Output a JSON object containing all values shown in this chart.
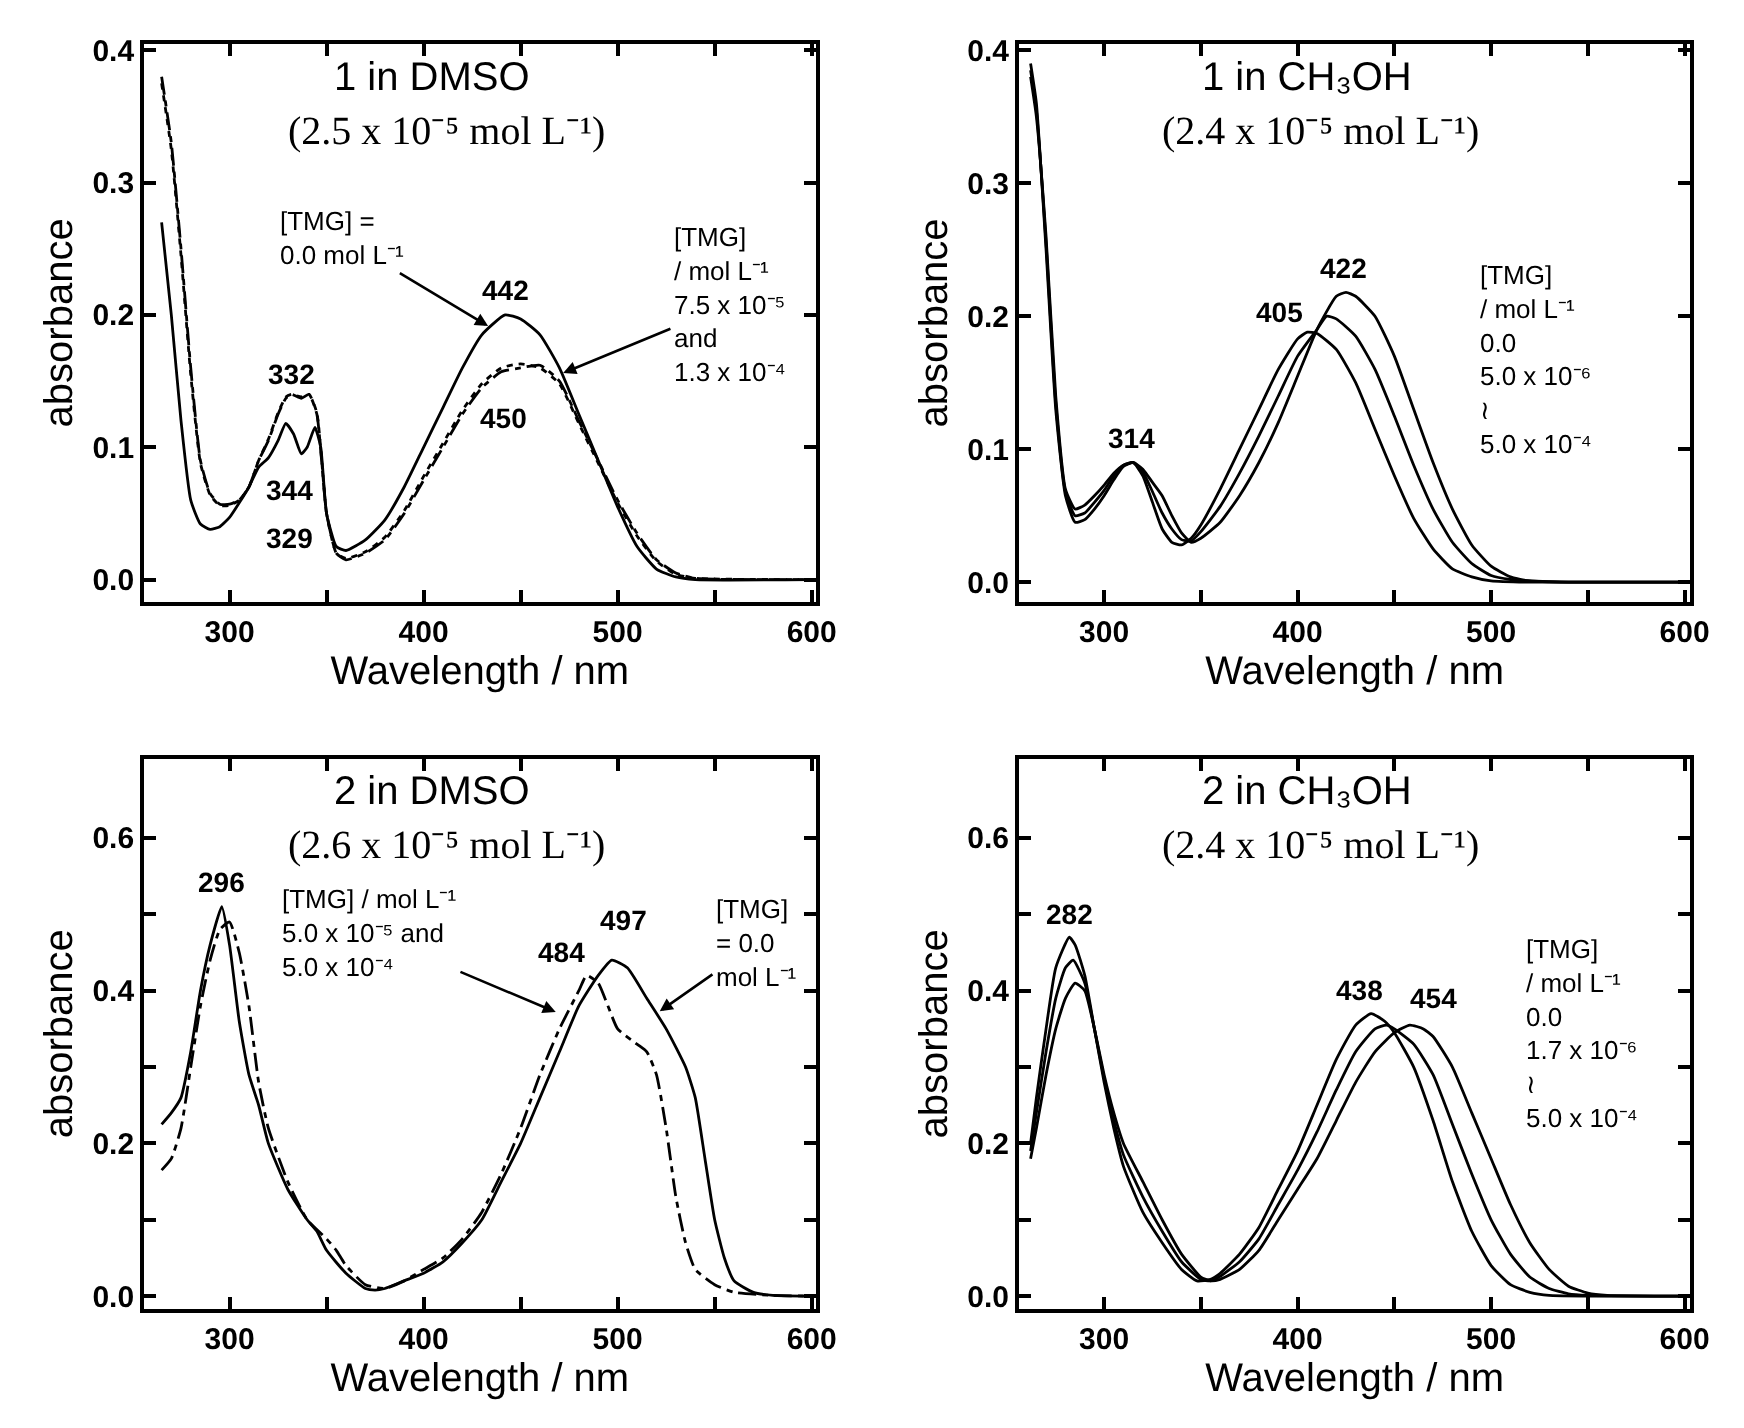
{
  "chart_data": [
    {
      "type": "line",
      "title": "1 in DMSO",
      "subtitle": "(2.5 x 10⁻⁵ mol L⁻¹)",
      "xlabel": "Wavelength / nm",
      "ylabel": "absorbance",
      "marker": "none",
      "xlim": [
        256,
        602
      ],
      "xticks": [
        300,
        {
          "value": 350,
          "label": null
        },
        400,
        {
          "value": 450,
          "label": null
        },
        500,
        {
          "value": 550,
          "label": null
        },
        600
      ],
      "ylim": [
        -0.017,
        0.405
      ],
      "yticks": [
        {
          "value": 0,
          "label": "0.0"
        },
        0.1,
        0.2,
        0.3,
        0.4
      ],
      "series": [
        {
          "color": "#000000",
          "line_style": "solid",
          "x": [
            265,
            270,
            275,
            280,
            285,
            290,
            295,
            300,
            305,
            310,
            315,
            320,
            325,
            329,
            333,
            337,
            340,
            344,
            347,
            350,
            355,
            360,
            370,
            380,
            390,
            400,
            410,
            420,
            430,
            442,
            450,
            460,
            470,
            480,
            490,
            500,
            510,
            520,
            530,
            540,
            600
          ],
          "values": [
            0.27,
            0.2,
            0.12,
            0.06,
            0.042,
            0.038,
            0.04,
            0.047,
            0.058,
            0.07,
            0.085,
            0.092,
            0.105,
            0.118,
            0.11,
            0.095,
            0.1,
            0.115,
            0.1,
            0.05,
            0.025,
            0.022,
            0.03,
            0.045,
            0.07,
            0.1,
            0.13,
            0.16,
            0.185,
            0.2,
            0.197,
            0.185,
            0.16,
            0.125,
            0.09,
            0.055,
            0.025,
            0.008,
            0.002,
            0,
            0
          ]
        },
        {
          "color": "#000000",
          "line_style": "dashed",
          "x": [
            265,
            270,
            275,
            280,
            285,
            290,
            295,
            300,
            305,
            310,
            315,
            320,
            325,
            329,
            332,
            337,
            341,
            345,
            350,
            355,
            360,
            370,
            380,
            390,
            400,
            410,
            420,
            430,
            440,
            450,
            460,
            470,
            480,
            490,
            500,
            510,
            520,
            530,
            540,
            600
          ],
          "values": [
            0.38,
            0.33,
            0.25,
            0.16,
            0.09,
            0.065,
            0.057,
            0.057,
            0.06,
            0.07,
            0.09,
            0.105,
            0.125,
            0.137,
            0.14,
            0.137,
            0.14,
            0.125,
            0.05,
            0.02,
            0.015,
            0.02,
            0.03,
            0.05,
            0.075,
            0.1,
            0.125,
            0.145,
            0.157,
            0.16,
            0.162,
            0.15,
            0.12,
            0.09,
            0.06,
            0.035,
            0.015,
            0.005,
            0.001,
            0
          ]
        },
        {
          "color": "#000000",
          "line_style": "dotted",
          "x": [
            265,
            270,
            275,
            280,
            285,
            290,
            295,
            300,
            305,
            310,
            315,
            320,
            325,
            329,
            332,
            337,
            341,
            345,
            350,
            355,
            360,
            370,
            380,
            390,
            400,
            410,
            420,
            430,
            440,
            450,
            460,
            470,
            480,
            490,
            500,
            510,
            520,
            530,
            540,
            600
          ],
          "values": [
            0.375,
            0.325,
            0.245,
            0.155,
            0.088,
            0.064,
            0.056,
            0.056,
            0.06,
            0.07,
            0.09,
            0.106,
            0.126,
            0.138,
            0.14,
            0.138,
            0.14,
            0.126,
            0.05,
            0.02,
            0.016,
            0.021,
            0.032,
            0.052,
            0.078,
            0.103,
            0.128,
            0.148,
            0.16,
            0.163,
            0.16,
            0.148,
            0.118,
            0.088,
            0.058,
            0.033,
            0.014,
            0.004,
            0.001,
            0
          ]
        }
      ],
      "annotations": [
        {
          "text": "332",
          "x": 332,
          "y": 0.14
        },
        "344",
        "329",
        {
          "text": "442",
          "x": 442,
          "y": 0.2
        },
        {
          "text": "450",
          "x": 450,
          "y": 0.16
        },
        {
          "text": "[TMG] =\n0.0 mol L⁻¹",
          "x": 435,
          "y": 0.19
        },
        {
          "text": "[TMG]\n/ mol L⁻¹\n7.5 x 10⁻⁵\nand\n1.3 x 10⁻⁴",
          "x": 470,
          "y": 0.155
        }
      ]
    },
    {
      "type": "line",
      "title": "1 in CH₃OH",
      "subtitle": "(2.4 x 10⁻⁵ mol L⁻¹)",
      "xlabel": "Wavelength / nm",
      "ylabel": "absorbance",
      "marker": "none",
      "xlim": [
        256,
        603
      ],
      "xticks": [
        300,
        {
          "value": 350,
          "label": null
        },
        400,
        {
          "value": 450,
          "label": null
        },
        500,
        {
          "value": 550,
          "label": null
        },
        600
      ],
      "ylim": [
        -0.015,
        0.405
      ],
      "yticks": [
        {
          "value": 0,
          "label": "0.0"
        },
        0.1,
        0.2,
        0.3,
        0.4
      ],
      "series": [
        {
          "color": "#000000",
          "line_style": "solid",
          "x": [
            262,
            265,
            270,
            275,
            280,
            285,
            290,
            295,
            300,
            305,
            310,
            315,
            320,
            325,
            330,
            335,
            340,
            345,
            350,
            360,
            370,
            380,
            390,
            400,
            410,
            420,
            425,
            430,
            440,
            450,
            460,
            470,
            480,
            490,
            500,
            510,
            520,
            540,
            600
          ],
          "values": [
            0.39,
            0.36,
            0.25,
            0.13,
            0.065,
            0.045,
            0.047,
            0.055,
            0.065,
            0.077,
            0.087,
            0.09,
            0.085,
            0.075,
            0.065,
            0.05,
            0.037,
            0.03,
            0.033,
            0.045,
            0.065,
            0.09,
            0.12,
            0.155,
            0.19,
            0.215,
            0.218,
            0.215,
            0.2,
            0.17,
            0.13,
            0.09,
            0.055,
            0.028,
            0.012,
            0.004,
            0.001,
            0,
            0
          ]
        },
        {
          "color": "#000000",
          "line_style": "solid",
          "x": [
            262,
            265,
            270,
            275,
            280,
            285,
            290,
            295,
            300,
            305,
            310,
            315,
            320,
            325,
            330,
            335,
            340,
            345,
            350,
            360,
            370,
            380,
            390,
            400,
            410,
            415,
            420,
            430,
            440,
            450,
            460,
            470,
            480,
            490,
            500,
            510,
            520,
            540,
            600
          ],
          "values": [
            0.385,
            0.355,
            0.255,
            0.135,
            0.068,
            0.05,
            0.052,
            0.06,
            0.069,
            0.08,
            0.088,
            0.09,
            0.083,
            0.068,
            0.052,
            0.04,
            0.032,
            0.031,
            0.038,
            0.057,
            0.082,
            0.11,
            0.14,
            0.17,
            0.19,
            0.2,
            0.198,
            0.185,
            0.16,
            0.125,
            0.088,
            0.055,
            0.03,
            0.014,
            0.005,
            0.002,
            0.001,
            0,
            0
          ]
        },
        {
          "color": "#000000",
          "line_style": "solid",
          "x": [
            262,
            265,
            270,
            275,
            280,
            285,
            290,
            295,
            300,
            305,
            310,
            315,
            320,
            325,
            330,
            335,
            340,
            345,
            350,
            360,
            370,
            380,
            390,
            400,
            405,
            410,
            420,
            430,
            440,
            450,
            460,
            470,
            480,
            490,
            500,
            520,
            600
          ],
          "values": [
            0.38,
            0.35,
            0.26,
            0.14,
            0.07,
            0.055,
            0.058,
            0.065,
            0.073,
            0.082,
            0.088,
            0.09,
            0.08,
            0.06,
            0.04,
            0.03,
            0.028,
            0.033,
            0.043,
            0.07,
            0.1,
            0.13,
            0.16,
            0.183,
            0.188,
            0.187,
            0.175,
            0.15,
            0.115,
            0.08,
            0.048,
            0.025,
            0.01,
            0.004,
            0.001,
            0,
            0
          ]
        }
      ],
      "annotations": [
        {
          "text": "314",
          "x": 314,
          "y": 0.09
        },
        {
          "text": "405",
          "x": 405,
          "y": 0.188
        },
        {
          "text": "422",
          "x": 422,
          "y": 0.218
        },
        "[TMG]\n/ mol L⁻¹\n0.0\n5.0 x 10⁻⁶\n≀\n5.0 x 10⁻⁴"
      ]
    },
    {
      "type": "line",
      "title": "2 in DMSO",
      "subtitle": "(2.6 x 10⁻⁵ mol L⁻¹)",
      "xlabel": "Wavelength / nm",
      "ylabel": "absorbance",
      "marker": "none",
      "xlim": [
        256,
        602
      ],
      "xticks": [
        300,
        {
          "value": 350,
          "label": null
        },
        400,
        {
          "value": 450,
          "label": null
        },
        500,
        {
          "value": 550,
          "label": null
        },
        600
      ],
      "ylim": [
        -0.017,
        0.704
      ],
      "yticks": [
        {
          "value": 0,
          "label": "0.0"
        },
        {
          "value": 0.1,
          "label": null
        },
        0.2,
        {
          "value": 0.3,
          "label": null
        },
        0.4,
        {
          "value": 0.5,
          "label": null
        },
        0.6
      ],
      "series": [
        {
          "color": "#000000",
          "line_style": "solid",
          "x": [
            265,
            270,
            275,
            280,
            285,
            290,
            296,
            300,
            305,
            310,
            315,
            320,
            330,
            340,
            345,
            350,
            360,
            370,
            375,
            380,
            390,
            400,
            410,
            420,
            430,
            440,
            450,
            460,
            470,
            480,
            490,
            497,
            505,
            515,
            525,
            535,
            540,
            545,
            550,
            555,
            560,
            570,
            580,
            600
          ],
          "values": [
            0.225,
            0.24,
            0.26,
            0.32,
            0.4,
            0.46,
            0.51,
            0.46,
            0.36,
            0.29,
            0.25,
            0.2,
            0.14,
            0.1,
            0.085,
            0.06,
            0.03,
            0.01,
            0.008,
            0.01,
            0.02,
            0.03,
            0.045,
            0.07,
            0.1,
            0.15,
            0.2,
            0.26,
            0.32,
            0.38,
            0.42,
            0.44,
            0.43,
            0.39,
            0.35,
            0.3,
            0.26,
            0.18,
            0.1,
            0.05,
            0.02,
            0.005,
            0.001,
            0
          ]
        },
        {
          "color": "#000000",
          "line_style": "dashed",
          "x": [
            265,
            270,
            275,
            280,
            285,
            290,
            295,
            300,
            305,
            310,
            315,
            320,
            330,
            340,
            350,
            355,
            360,
            370,
            380,
            390,
            400,
            410,
            420,
            430,
            440,
            450,
            460,
            470,
            480,
            484,
            490,
            495,
            500,
            510,
            515,
            520,
            525,
            530,
            535,
            540,
            550,
            560,
            580,
            600
          ],
          "values": [
            0.165,
            0.18,
            0.22,
            0.3,
            0.38,
            0.44,
            0.48,
            0.49,
            0.45,
            0.38,
            0.28,
            0.22,
            0.15,
            0.1,
            0.075,
            0.06,
            0.04,
            0.015,
            0.01,
            0.02,
            0.035,
            0.05,
            0.075,
            0.11,
            0.16,
            0.22,
            0.29,
            0.35,
            0.4,
            0.42,
            0.41,
            0.38,
            0.35,
            0.33,
            0.32,
            0.29,
            0.22,
            0.13,
            0.07,
            0.035,
            0.015,
            0.005,
            0.001,
            0
          ]
        }
      ],
      "annotations": [
        {
          "text": "296",
          "x": 296,
          "y": 0.51
        },
        {
          "text": "484",
          "x": 484,
          "y": 0.42
        },
        {
          "text": "497",
          "x": 497,
          "y": 0.44
        },
        {
          "text": "[TMG] / mol L⁻¹\n5.0 x 10⁻⁵ and\n5.0 x 10⁻⁴",
          "x": 470,
          "y": 0.37
        },
        {
          "text": "[TMG]\n= 0.0\nmol L⁻¹",
          "x": 520,
          "y": 0.37
        }
      ]
    },
    {
      "type": "line",
      "title": "2 in CH₃OH",
      "subtitle": "(2.4 x 10⁻⁵ mol L⁻¹)",
      "xlabel": "Wavelength / nm",
      "ylabel": "absorbance",
      "marker": "none",
      "xlim": [
        256,
        603
      ],
      "xticks": [
        300,
        {
          "value": 350,
          "label": null
        },
        400,
        {
          "value": 450,
          "label": null
        },
        500,
        {
          "value": 550,
          "label": null
        },
        600
      ],
      "ylim": [
        -0.017,
        0.704
      ],
      "yticks": [
        {
          "value": 0,
          "label": "0.0"
        },
        {
          "value": 0.1,
          "label": null
        },
        0.2,
        {
          "value": 0.3,
          "label": null
        },
        0.4,
        {
          "value": 0.5,
          "label": null
        },
        0.6
      ],
      "series": [
        {
          "color": "#000000",
          "line_style": "solid",
          "x": [
            262,
            265,
            270,
            275,
            280,
            285,
            290,
            295,
            300,
            305,
            310,
            320,
            330,
            340,
            350,
            355,
            360,
            370,
            380,
            390,
            400,
            410,
            420,
            430,
            440,
            450,
            458,
            465,
            470,
            480,
            490,
            500,
            510,
            520,
            530,
            540,
            550,
            560,
            600
          ],
          "values": [
            0.18,
            0.22,
            0.29,
            0.35,
            0.39,
            0.41,
            0.4,
            0.35,
            0.29,
            0.24,
            0.2,
            0.15,
            0.1,
            0.055,
            0.025,
            0.02,
            0.022,
            0.035,
            0.06,
            0.1,
            0.14,
            0.18,
            0.23,
            0.28,
            0.32,
            0.345,
            0.355,
            0.35,
            0.34,
            0.3,
            0.24,
            0.18,
            0.12,
            0.07,
            0.035,
            0.013,
            0.004,
            0.001,
            0
          ]
        },
        {
          "color": "#000000",
          "line_style": "solid",
          "x": [
            262,
            265,
            270,
            275,
            280,
            284,
            290,
            295,
            300,
            305,
            310,
            320,
            330,
            340,
            350,
            355,
            360,
            370,
            380,
            390,
            400,
            410,
            420,
            430,
            440,
            446,
            450,
            460,
            470,
            480,
            490,
            500,
            510,
            520,
            530,
            540,
            550,
            600
          ],
          "values": [
            0.19,
            0.24,
            0.32,
            0.39,
            0.43,
            0.44,
            0.41,
            0.35,
            0.285,
            0.23,
            0.185,
            0.13,
            0.085,
            0.045,
            0.022,
            0.02,
            0.026,
            0.045,
            0.075,
            0.12,
            0.165,
            0.215,
            0.27,
            0.32,
            0.35,
            0.355,
            0.35,
            0.33,
            0.29,
            0.225,
            0.16,
            0.1,
            0.055,
            0.025,
            0.01,
            0.003,
            0.001,
            0
          ]
        },
        {
          "color": "#000000",
          "line_style": "solid",
          "x": [
            262,
            265,
            270,
            275,
            282,
            285,
            290,
            295,
            300,
            305,
            310,
            320,
            330,
            340,
            348,
            355,
            360,
            370,
            380,
            390,
            400,
            410,
            420,
            430,
            438,
            445,
            450,
            460,
            470,
            480,
            490,
            500,
            510,
            520,
            530,
            600
          ],
          "values": [
            0.2,
            0.26,
            0.35,
            0.43,
            0.47,
            0.46,
            0.42,
            0.35,
            0.28,
            0.22,
            0.17,
            0.11,
            0.07,
            0.035,
            0.02,
            0.022,
            0.03,
            0.055,
            0.09,
            0.14,
            0.19,
            0.25,
            0.31,
            0.355,
            0.37,
            0.36,
            0.345,
            0.3,
            0.23,
            0.15,
            0.085,
            0.04,
            0.015,
            0.005,
            0.001,
            0
          ]
        }
      ],
      "annotations": [
        {
          "text": "282",
          "x": 282,
          "y": 0.47
        },
        {
          "text": "438",
          "x": 438,
          "y": 0.37
        },
        {
          "text": "454",
          "x": 454,
          "y": 0.355
        },
        "[TMG]\n/ mol L⁻¹\n0.0\n1.7 x 10⁻⁶\n≀\n5.0 x 10⁻⁴"
      ]
    }
  ]
}
